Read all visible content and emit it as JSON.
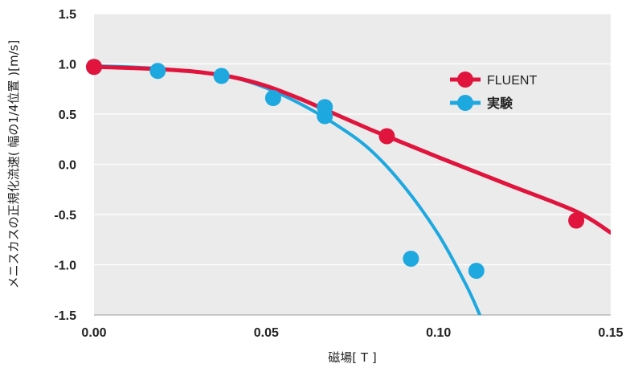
{
  "chart_data": {
    "type": "line",
    "xlabel": "磁場[ T ]",
    "ylabel": "メニスカスの正規化流速( 幅の1/4位置 )[m/s]",
    "xlim": [
      0,
      0.15
    ],
    "ylim": [
      -1.5,
      1.5
    ],
    "x_ticks": [
      "0.00",
      "0.05",
      "0.10",
      "0.15"
    ],
    "y_ticks": [
      "1.5",
      "1.0",
      "0.5",
      "0.0",
      "-0.5",
      "-1.0",
      "-1.5"
    ],
    "grid": "horizontal",
    "legend_position": "right",
    "series": [
      {
        "name": "FLUENT",
        "color": "#e0143c",
        "points": [
          {
            "x": 0.0,
            "y": 0.97
          },
          {
            "x": 0.085,
            "y": 0.28
          },
          {
            "x": 0.14,
            "y": -0.56
          }
        ],
        "curve": [
          {
            "x": 0.0,
            "y": 0.97
          },
          {
            "x": 0.01,
            "y": 0.96
          },
          {
            "x": 0.02,
            "y": 0.945
          },
          {
            "x": 0.03,
            "y": 0.92
          },
          {
            "x": 0.04,
            "y": 0.87
          },
          {
            "x": 0.05,
            "y": 0.78
          },
          {
            "x": 0.06,
            "y": 0.65
          },
          {
            "x": 0.07,
            "y": 0.5
          },
          {
            "x": 0.08,
            "y": 0.35
          },
          {
            "x": 0.085,
            "y": 0.28
          },
          {
            "x": 0.1,
            "y": 0.07
          },
          {
            "x": 0.12,
            "y": -0.2
          },
          {
            "x": 0.14,
            "y": -0.47
          },
          {
            "x": 0.15,
            "y": -0.68
          }
        ]
      },
      {
        "name": "実験",
        "color": "#1ea8e0",
        "points": [
          {
            "x": 0.0,
            "y": 0.97
          },
          {
            "x": 0.0185,
            "y": 0.93
          },
          {
            "x": 0.037,
            "y": 0.88
          },
          {
            "x": 0.052,
            "y": 0.66
          },
          {
            "x": 0.067,
            "y": 0.57
          },
          {
            "x": 0.067,
            "y": 0.48
          },
          {
            "x": 0.092,
            "y": -0.94
          },
          {
            "x": 0.111,
            "y": -1.06
          }
        ],
        "curve": [
          {
            "x": 0.0,
            "y": 0.98
          },
          {
            "x": 0.01,
            "y": 0.97
          },
          {
            "x": 0.02,
            "y": 0.95
          },
          {
            "x": 0.03,
            "y": 0.92
          },
          {
            "x": 0.04,
            "y": 0.87
          },
          {
            "x": 0.05,
            "y": 0.76
          },
          {
            "x": 0.06,
            "y": 0.6
          },
          {
            "x": 0.07,
            "y": 0.4
          },
          {
            "x": 0.08,
            "y": 0.15
          },
          {
            "x": 0.09,
            "y": -0.22
          },
          {
            "x": 0.1,
            "y": -0.7
          },
          {
            "x": 0.108,
            "y": -1.2
          },
          {
            "x": 0.112,
            "y": -1.5
          }
        ]
      }
    ]
  }
}
